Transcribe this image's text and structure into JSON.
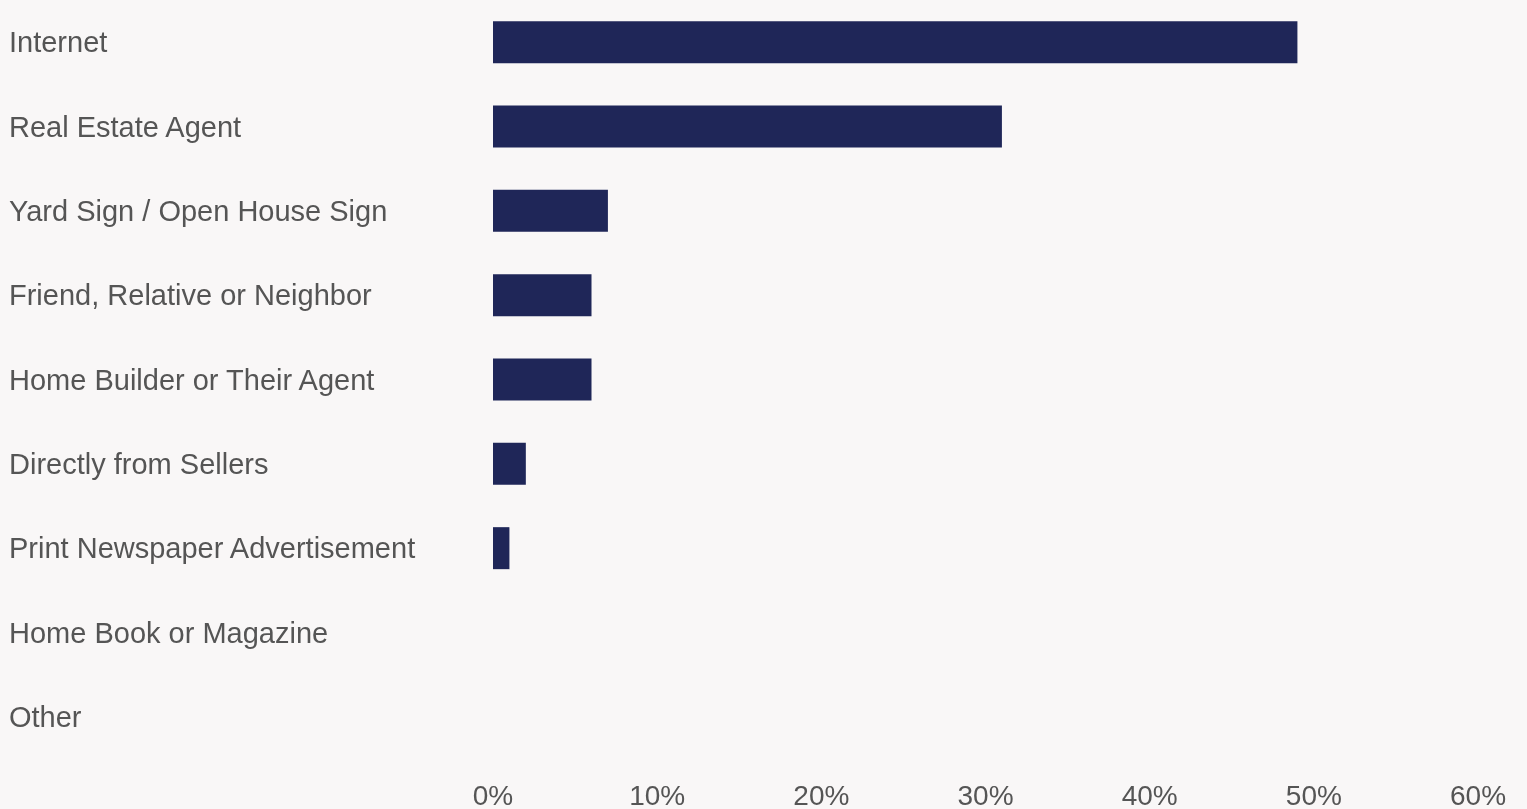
{
  "chart_data": {
    "type": "bar",
    "orientation": "horizontal",
    "categories": [
      "Internet",
      "Real Estate Agent",
      "Yard Sign / Open House Sign",
      "Friend, Relative or Neighbor",
      "Home Builder or Their Agent",
      "Directly from Sellers",
      "Print Newspaper Advertisement",
      "Home Book or Magazine",
      "Other"
    ],
    "values": [
      49,
      31,
      7,
      6,
      6,
      2,
      1,
      0,
      0
    ],
    "color": "#1f2658",
    "xlim": [
      0,
      60
    ],
    "xticks": [
      {
        "value": 0,
        "label": "0%"
      },
      {
        "value": 10,
        "label": "10%"
      },
      {
        "value": 20,
        "label": "20%"
      },
      {
        "value": 30,
        "label": "30%"
      },
      {
        "value": 40,
        "label": "40%"
      },
      {
        "value": 50,
        "label": "50%"
      },
      {
        "value": 60,
        "label": "60%"
      }
    ],
    "grid": false
  }
}
